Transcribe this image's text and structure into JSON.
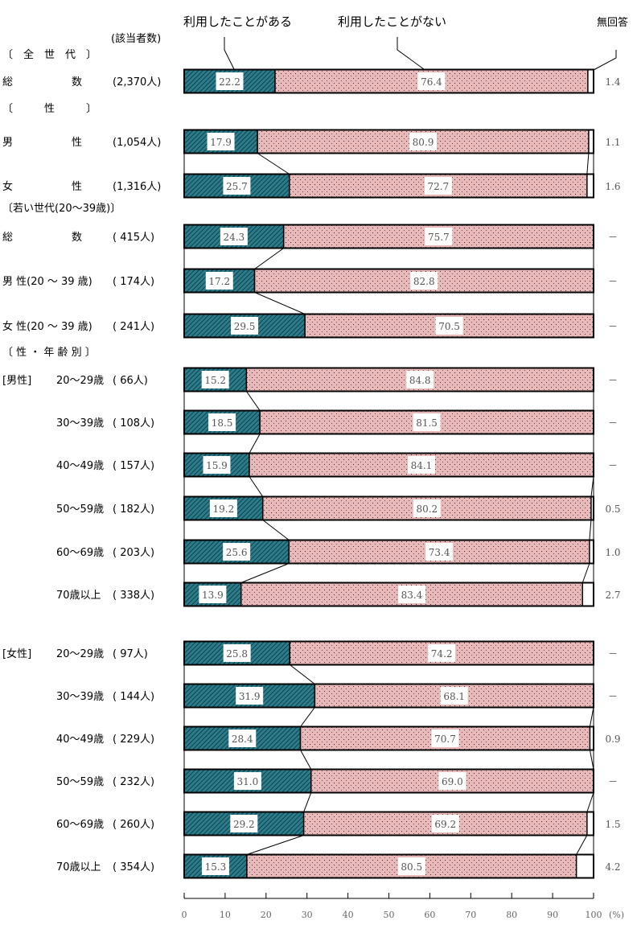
{
  "chart_data": {
    "type": "bar",
    "orientation": "horizontal",
    "stacked": true,
    "count_header": "(該当者数)",
    "series": [
      {
        "name": "利用したことがある",
        "color": "#2b7d8c"
      },
      {
        "name": "利用したことがない",
        "color": "#e9b9b9"
      },
      {
        "name": "無回答",
        "color": "#ffffff"
      }
    ],
    "missing_label": "－",
    "sections": [
      {
        "title": "〔　全　世　代　〕"
      },
      {
        "title": "〔　　　性　　　〕"
      },
      {
        "title": "〔若い世代(20～39歳)〕"
      },
      {
        "title": "〔 性 ・ 年 齢 別 〕"
      }
    ],
    "rows": [
      {
        "group": "",
        "name": "総",
        "name2": "数",
        "count": "(2,370人)",
        "values": [
          22.2,
          76.4,
          1.4
        ]
      },
      {
        "group": "",
        "name": "男",
        "name2": "性",
        "count": "(1,054人)",
        "values": [
          17.9,
          80.9,
          1.1
        ]
      },
      {
        "group": "",
        "name": "女",
        "name2": "性",
        "count": "(1,316人)",
        "values": [
          25.7,
          72.7,
          1.6
        ]
      },
      {
        "group": "",
        "name": "総",
        "name2": "数",
        "count": "(  415人)",
        "values": [
          24.3,
          75.7,
          null
        ]
      },
      {
        "group": "",
        "name": "男 性(20 ～ 39 歳)",
        "name2": "",
        "count": "(  174人)",
        "values": [
          17.2,
          82.8,
          null
        ]
      },
      {
        "group": "",
        "name": "女 性(20 ～ 39 歳)",
        "name2": "",
        "count": "(  241人)",
        "values": [
          29.5,
          70.5,
          null
        ]
      },
      {
        "group": "[男性]",
        "name": "20～29歳",
        "name2": "",
        "count": "(  66人)",
        "values": [
          15.2,
          84.8,
          null
        ]
      },
      {
        "group": "",
        "name": "30～39歳",
        "name2": "",
        "count": "( 108人)",
        "values": [
          18.5,
          81.5,
          null
        ]
      },
      {
        "group": "",
        "name": "40～49歳",
        "name2": "",
        "count": "( 157人)",
        "values": [
          15.9,
          84.1,
          null
        ]
      },
      {
        "group": "",
        "name": "50～59歳",
        "name2": "",
        "count": "( 182人)",
        "values": [
          19.2,
          80.2,
          0.5
        ]
      },
      {
        "group": "",
        "name": "60～69歳",
        "name2": "",
        "count": "( 203人)",
        "values": [
          25.6,
          73.4,
          1.0
        ]
      },
      {
        "group": "",
        "name": "70歳以上",
        "name2": "",
        "count": "( 338人)",
        "values": [
          13.9,
          83.4,
          2.7
        ]
      },
      {
        "group": "[女性]",
        "name": "20～29歳",
        "name2": "",
        "count": "(  97人)",
        "values": [
          25.8,
          74.2,
          null
        ]
      },
      {
        "group": "",
        "name": "30～39歳",
        "name2": "",
        "count": "( 144人)",
        "values": [
          31.9,
          68.1,
          null
        ]
      },
      {
        "group": "",
        "name": "40～49歳",
        "name2": "",
        "count": "( 229人)",
        "values": [
          28.4,
          70.7,
          0.9
        ]
      },
      {
        "group": "",
        "name": "50～59歳",
        "name2": "",
        "count": "( 232人)",
        "values": [
          31.0,
          69.0,
          null
        ]
      },
      {
        "group": "",
        "name": "60～69歳",
        "name2": "",
        "count": "( 260人)",
        "values": [
          29.2,
          69.2,
          1.5
        ]
      },
      {
        "group": "",
        "name": "70歳以上",
        "name2": "",
        "count": "( 354人)",
        "values": [
          15.3,
          80.5,
          4.2
        ]
      }
    ],
    "xlim": [
      0,
      100
    ],
    "xticks": [
      0,
      10,
      20,
      30,
      40,
      50,
      60,
      70,
      80,
      90,
      100
    ],
    "xunit": "(%)",
    "grid": false,
    "legend": "top"
  }
}
